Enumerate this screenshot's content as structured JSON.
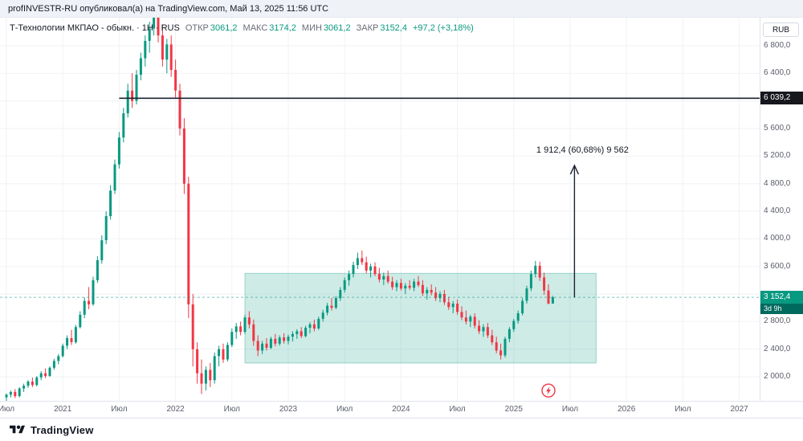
{
  "publish_bar": {
    "text": "profINVESTR-RU опубликовал(а) на TradingView.com, Май 13, 2025 11:56 UTC"
  },
  "legend": {
    "title": "Т-Технологии МКПАО - обыкн. · 1Н · RUS",
    "fields": [
      {
        "label": "ОТКР",
        "value": "3061,2"
      },
      {
        "label": "МАКС",
        "value": "3174,2"
      },
      {
        "label": "МИН",
        "value": "3061,2"
      },
      {
        "label": "ЗАКР",
        "value": "3152,4"
      }
    ],
    "change": "+97,2 (+3,18%)"
  },
  "currency_button": "RUB",
  "price_axis": {
    "labels": [
      {
        "text": "6 800,0",
        "price": 6800
      },
      {
        "text": "6 400,0",
        "price": 6400
      },
      {
        "text": "5 600,0",
        "price": 5600
      },
      {
        "text": "5 200,0",
        "price": 5200
      },
      {
        "text": "4 800,0",
        "price": 4800
      },
      {
        "text": "4 400,0",
        "price": 4400
      },
      {
        "text": "4 000,0",
        "price": 4000
      },
      {
        "text": "3 600,0",
        "price": 3600
      },
      {
        "text": "2 800,0",
        "price": 2800
      },
      {
        "text": "2 400,0",
        "price": 2400
      },
      {
        "text": "2 000,0",
        "price": 2000
      }
    ],
    "line_label": {
      "text": "6 039,2",
      "price": 6039.2
    },
    "last_price": {
      "text": "3 152,4",
      "price": 3152.4,
      "countdown": "3d 9h"
    }
  },
  "time_axis": {
    "labels": [
      {
        "text": "Июл",
        "index": 0
      },
      {
        "text": "2021",
        "index": 13
      },
      {
        "text": "Июл",
        "index": 26
      },
      {
        "text": "2022",
        "index": 39
      },
      {
        "text": "Июл",
        "index": 52
      },
      {
        "text": "2023",
        "index": 65
      },
      {
        "text": "Июл",
        "index": 78
      },
      {
        "text": "2024",
        "index": 91
      },
      {
        "text": "Июл",
        "index": 104
      },
      {
        "text": "2025",
        "index": 117
      },
      {
        "text": "Июл",
        "index": 130
      },
      {
        "text": "2026",
        "index": 143
      },
      {
        "text": "Июл",
        "index": 156
      },
      {
        "text": "2027",
        "index": 169
      }
    ]
  },
  "footer": {
    "brand": "TradingView"
  },
  "colors": {
    "up": "#089981",
    "down": "#f23645",
    "grid": "#f0f2f6",
    "box_fill": "rgba(8,153,129,0.20)",
    "box_stroke": "rgba(8,153,129,0.35)",
    "trend_line": "#1c2330",
    "axis_text": "#5a5e6b",
    "label_black_bg": "#16181e",
    "last_label_bg": "#089981",
    "countdown_bg": "#016a5e",
    "annotation_text": "#131722"
  },
  "chart_data": {
    "type": "candlestick",
    "symbol": "Т-Технологии МКПАО - обыкн.",
    "interval": "1Н",
    "currency": "RUB",
    "title": "",
    "visible_price_range": [
      1640,
      7200
    ],
    "grid": {
      "h_prices": [
        2000,
        2400,
        2800,
        3200,
        3600,
        4000,
        4400,
        4800,
        5200,
        5600,
        6000,
        6400,
        6800
      ]
    },
    "ohlc": [
      [
        1700,
        1760,
        1650,
        1740
      ],
      [
        1740,
        1800,
        1700,
        1780
      ],
      [
        1780,
        1820,
        1690,
        1720
      ],
      [
        1720,
        1850,
        1700,
        1830
      ],
      [
        1830,
        1900,
        1780,
        1870
      ],
      [
        1870,
        1950,
        1840,
        1930
      ],
      [
        1930,
        1990,
        1850,
        1880
      ],
      [
        1880,
        2010,
        1860,
        1990
      ],
      [
        1990,
        2080,
        1950,
        2050
      ],
      [
        2050,
        2120,
        1980,
        2010
      ],
      [
        2010,
        2150,
        2000,
        2130
      ],
      [
        2130,
        2260,
        2100,
        2230
      ],
      [
        2230,
        2330,
        2180,
        2300
      ],
      [
        2300,
        2480,
        2280,
        2450
      ],
      [
        2450,
        2600,
        2400,
        2560
      ],
      [
        2560,
        2680,
        2460,
        2500
      ],
      [
        2500,
        2750,
        2480,
        2720
      ],
      [
        2720,
        2950,
        2700,
        2900
      ],
      [
        2900,
        3150,
        2850,
        3100
      ],
      [
        3100,
        3300,
        2980,
        3050
      ],
      [
        3050,
        3450,
        3030,
        3400
      ],
      [
        3400,
        3750,
        3360,
        3690
      ],
      [
        3690,
        4050,
        3640,
        3980
      ],
      [
        3980,
        4400,
        3920,
        4330
      ],
      [
        4330,
        4780,
        4280,
        4700
      ],
      [
        4700,
        5150,
        4650,
        5080
      ],
      [
        5080,
        5550,
        5020,
        5470
      ],
      [
        5470,
        5900,
        5400,
        5820
      ],
      [
        5820,
        6250,
        5760,
        6150
      ],
      [
        6150,
        6400,
        5900,
        6000
      ],
      [
        6000,
        6450,
        5950,
        6380
      ],
      [
        6380,
        6700,
        6300,
        6620
      ],
      [
        6620,
        6950,
        6500,
        6870
      ],
      [
        6870,
        7150,
        6700,
        7050
      ],
      [
        7050,
        7480,
        6950,
        7350
      ],
      [
        7350,
        7520,
        6850,
        6950
      ],
      [
        6950,
        7100,
        6500,
        6600
      ],
      [
        6600,
        6900,
        6400,
        6820
      ],
      [
        6820,
        6950,
        6350,
        6450
      ],
      [
        6450,
        6600,
        6050,
        6150
      ],
      [
        6150,
        6250,
        5500,
        5600
      ],
      [
        5600,
        5750,
        4650,
        4800
      ],
      [
        4800,
        4900,
        2850,
        3050
      ],
      [
        3050,
        3200,
        2150,
        2400
      ],
      [
        2400,
        2500,
        1900,
        2050
      ],
      [
        2050,
        2250,
        1750,
        1900
      ],
      [
        1900,
        2150,
        1800,
        2100
      ],
      [
        2100,
        2200,
        1850,
        1950
      ],
      [
        1950,
        2350,
        1900,
        2300
      ],
      [
        2300,
        2450,
        2150,
        2400
      ],
      [
        2400,
        2480,
        2200,
        2250
      ],
      [
        2250,
        2500,
        2220,
        2460
      ],
      [
        2460,
        2700,
        2430,
        2650
      ],
      [
        2650,
        2780,
        2550,
        2730
      ],
      [
        2730,
        2800,
        2600,
        2650
      ],
      [
        2650,
        2900,
        2620,
        2860
      ],
      [
        2860,
        2950,
        2700,
        2760
      ],
      [
        2760,
        2830,
        2450,
        2520
      ],
      [
        2520,
        2600,
        2300,
        2380
      ],
      [
        2380,
        2520,
        2330,
        2480
      ],
      [
        2480,
        2560,
        2380,
        2420
      ],
      [
        2420,
        2580,
        2400,
        2550
      ],
      [
        2550,
        2620,
        2440,
        2480
      ],
      [
        2480,
        2600,
        2450,
        2570
      ],
      [
        2570,
        2630,
        2480,
        2520
      ],
      [
        2520,
        2610,
        2470,
        2580
      ],
      [
        2580,
        2660,
        2510,
        2620
      ],
      [
        2620,
        2690,
        2550,
        2660
      ],
      [
        2660,
        2720,
        2560,
        2590
      ],
      [
        2590,
        2740,
        2570,
        2710
      ],
      [
        2710,
        2790,
        2630,
        2760
      ],
      [
        2760,
        2830,
        2660,
        2700
      ],
      [
        2700,
        2870,
        2680,
        2840
      ],
      [
        2840,
        2970,
        2800,
        2930
      ],
      [
        2930,
        3070,
        2890,
        3030
      ],
      [
        3030,
        3140,
        2960,
        3000
      ],
      [
        3000,
        3170,
        2980,
        3140
      ],
      [
        3140,
        3300,
        3100,
        3260
      ],
      [
        3260,
        3440,
        3220,
        3400
      ],
      [
        3400,
        3540,
        3320,
        3490
      ],
      [
        3490,
        3670,
        3440,
        3620
      ],
      [
        3620,
        3800,
        3560,
        3720
      ],
      [
        3720,
        3830,
        3620,
        3660
      ],
      [
        3660,
        3740,
        3500,
        3540
      ],
      [
        3540,
        3640,
        3440,
        3600
      ],
      [
        3600,
        3660,
        3460,
        3490
      ],
      [
        3490,
        3580,
        3370,
        3410
      ],
      [
        3410,
        3510,
        3330,
        3460
      ],
      [
        3460,
        3540,
        3350,
        3380
      ],
      [
        3380,
        3450,
        3260,
        3300
      ],
      [
        3300,
        3400,
        3240,
        3360
      ],
      [
        3360,
        3420,
        3250,
        3280
      ],
      [
        3280,
        3360,
        3200,
        3320
      ],
      [
        3320,
        3400,
        3260,
        3290
      ],
      [
        3290,
        3420,
        3240,
        3380
      ],
      [
        3380,
        3460,
        3300,
        3330
      ],
      [
        3330,
        3400,
        3170,
        3210
      ],
      [
        3210,
        3300,
        3120,
        3260
      ],
      [
        3260,
        3340,
        3180,
        3220
      ],
      [
        3220,
        3300,
        3100,
        3140
      ],
      [
        3140,
        3240,
        3080,
        3200
      ],
      [
        3200,
        3260,
        3040,
        3080
      ],
      [
        3080,
        3160,
        2970,
        3010
      ],
      [
        3010,
        3100,
        2920,
        3060
      ],
      [
        3060,
        3120,
        2900,
        2940
      ],
      [
        2940,
        3020,
        2820,
        2860
      ],
      [
        2860,
        2960,
        2760,
        2800
      ],
      [
        2800,
        2900,
        2720,
        2870
      ],
      [
        2870,
        2920,
        2700,
        2740
      ],
      [
        2740,
        2820,
        2620,
        2660
      ],
      [
        2660,
        2760,
        2580,
        2720
      ],
      [
        2720,
        2780,
        2560,
        2600
      ],
      [
        2600,
        2680,
        2460,
        2500
      ],
      [
        2500,
        2580,
        2340,
        2380
      ],
      [
        2380,
        2480,
        2250,
        2310
      ],
      [
        2310,
        2580,
        2280,
        2550
      ],
      [
        2550,
        2720,
        2500,
        2690
      ],
      [
        2690,
        2840,
        2650,
        2810
      ],
      [
        2810,
        2960,
        2770,
        2920
      ],
      [
        2920,
        3140,
        2890,
        3100
      ],
      [
        3100,
        3320,
        3060,
        3280
      ],
      [
        3280,
        3540,
        3240,
        3490
      ],
      [
        3490,
        3680,
        3440,
        3610
      ],
      [
        3610,
        3670,
        3390,
        3440
      ],
      [
        3440,
        3510,
        3190,
        3250
      ],
      [
        3250,
        3340,
        3050,
        3061
      ],
      [
        3061,
        3174,
        3061,
        3152
      ]
    ],
    "annotations": {
      "hline": {
        "price": 6039.2,
        "start_index": 26,
        "label": "6 039,2"
      },
      "range_box": {
        "start_index": 55,
        "end_index": 136,
        "top_price": 3500,
        "bottom_price": 2200
      },
      "arrow": {
        "index": 131,
        "from_price": 3152.4,
        "to_price": 5064.8,
        "label": "1 912,4 (60,68%) 9 562"
      },
      "last_price_line": {
        "price": 3152.4
      },
      "event_icon": {
        "index": 125,
        "price": 1800,
        "symbol": "lightning"
      }
    }
  }
}
